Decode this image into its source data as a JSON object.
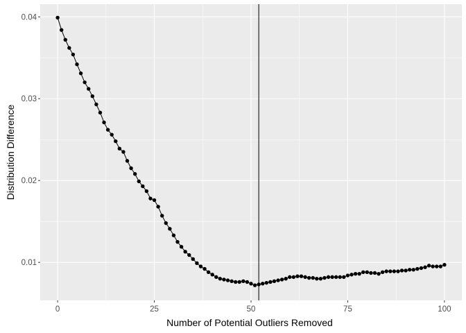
{
  "chart_data": {
    "type": "line",
    "title": "",
    "xlabel": "Number of Potential Outliers Removed",
    "ylabel": "Distribution Difference",
    "xlim": [
      -4.5,
      104.5
    ],
    "ylim": [
      0.00535,
      0.04155
    ],
    "x_ticks": [
      0,
      25,
      50,
      75,
      100
    ],
    "x_tick_labels": [
      "0",
      "25",
      "50",
      "75",
      "100"
    ],
    "y_ticks": [
      0.01,
      0.02,
      0.03,
      0.04
    ],
    "y_tick_labels": [
      "0.01",
      "0.02",
      "0.03",
      "0.04"
    ],
    "grid": true,
    "vline_x": 52,
    "series": [
      {
        "x": [
          0,
          1,
          2,
          3,
          4,
          5,
          6,
          7,
          8,
          9,
          10,
          11,
          12,
          13,
          14,
          15,
          16,
          17,
          18,
          19,
          20,
          21,
          22,
          23,
          24,
          25,
          26,
          27,
          28,
          29,
          30,
          31,
          32,
          33,
          34,
          35,
          36,
          37,
          38,
          39,
          40,
          41,
          42,
          43,
          44,
          45,
          46,
          47,
          48,
          49,
          50,
          51,
          52,
          53,
          54,
          55,
          56,
          57,
          58,
          59,
          60,
          61,
          62,
          63,
          64,
          65,
          66,
          67,
          68,
          69,
          70,
          71,
          72,
          73,
          74,
          75,
          76,
          77,
          78,
          79,
          80,
          81,
          82,
          83,
          84,
          85,
          86,
          87,
          88,
          89,
          90,
          91,
          92,
          93,
          94,
          95,
          96,
          97,
          98,
          99,
          100
        ],
        "values": [
          0.0399,
          0.0384,
          0.0372,
          0.0362,
          0.0354,
          0.0342,
          0.0331,
          0.032,
          0.0312,
          0.0303,
          0.0293,
          0.0283,
          0.0271,
          0.0262,
          0.0256,
          0.0248,
          0.0239,
          0.0235,
          0.0224,
          0.0215,
          0.0208,
          0.0199,
          0.0193,
          0.0187,
          0.0178,
          0.0176,
          0.0168,
          0.0157,
          0.0148,
          0.0141,
          0.0133,
          0.0125,
          0.0119,
          0.0113,
          0.0109,
          0.0104,
          0.0099,
          0.0095,
          0.0092,
          0.0088,
          0.0085,
          0.0082,
          0.008,
          0.0079,
          0.0078,
          0.0077,
          0.0076,
          0.0076,
          0.0077,
          0.0076,
          0.0074,
          0.0072,
          0.0073,
          0.0074,
          0.0075,
          0.0076,
          0.0077,
          0.0078,
          0.0079,
          0.008,
          0.0082,
          0.0082,
          0.0083,
          0.0083,
          0.0082,
          0.0081,
          0.0081,
          0.008,
          0.008,
          0.0081,
          0.0082,
          0.0082,
          0.0082,
          0.0082,
          0.0082,
          0.0084,
          0.0085,
          0.0086,
          0.0086,
          0.0088,
          0.0088,
          0.0087,
          0.0087,
          0.0086,
          0.0088,
          0.0089,
          0.0089,
          0.0089,
          0.0089,
          0.009,
          0.009,
          0.0091,
          0.0091,
          0.0092,
          0.0093,
          0.0094,
          0.0096,
          0.0095,
          0.0095,
          0.0095,
          0.0097
        ]
      }
    ]
  }
}
